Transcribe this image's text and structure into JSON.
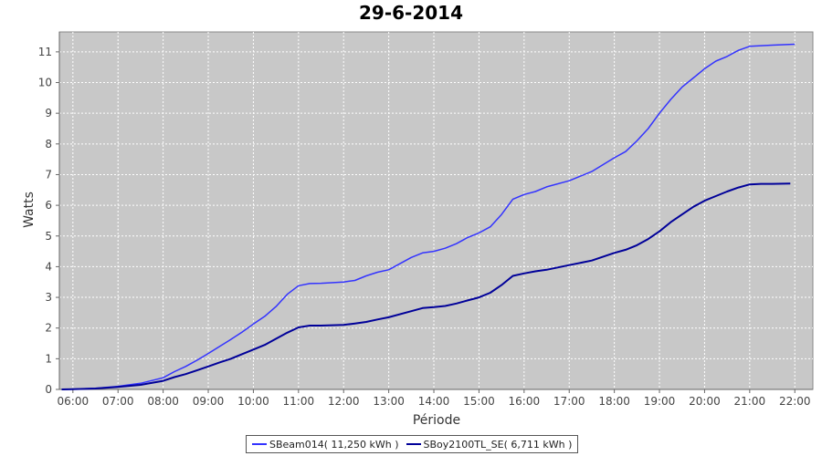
{
  "chart_data": {
    "type": "line",
    "title": "29-6-2014",
    "xlabel": "Période",
    "ylabel": "Watts",
    "x_ticks": [
      "06:00",
      "07:00",
      "08:00",
      "09:00",
      "10:00",
      "11:00",
      "12:00",
      "13:00",
      "14:00",
      "15:00",
      "16:00",
      "17:00",
      "18:00",
      "19:00",
      "20:00",
      "21:00",
      "22:00"
    ],
    "y_ticks": [
      "0",
      "1",
      "2",
      "3",
      "4",
      "5",
      "6",
      "7",
      "8",
      "9",
      "10",
      "11"
    ],
    "xlim": [
      5.7,
      22.4
    ],
    "ylim": [
      0,
      11.65
    ],
    "grid": true,
    "legend_position": "bottom",
    "series": [
      {
        "name": "SBeam014( 11,250 kWh )",
        "color": "#3333ff",
        "x": [
          5.75,
          6.0,
          6.5,
          7.0,
          7.5,
          8.0,
          8.25,
          8.5,
          8.75,
          9.0,
          9.25,
          9.5,
          9.75,
          10.0,
          10.25,
          10.5,
          10.75,
          11.0,
          11.25,
          11.5,
          12.0,
          12.25,
          12.5,
          12.75,
          13.0,
          13.5,
          13.75,
          14.0,
          14.25,
          14.5,
          14.75,
          15.0,
          15.25,
          15.5,
          15.75,
          16.0,
          16.25,
          16.5,
          17.0,
          17.5,
          18.0,
          18.25,
          18.5,
          18.75,
          19.0,
          19.25,
          19.5,
          19.75,
          20.0,
          20.25,
          20.5,
          20.75,
          21.0,
          21.25,
          21.5,
          22.0
        ],
        "y": [
          0,
          0.01,
          0.04,
          0.1,
          0.2,
          0.38,
          0.58,
          0.75,
          0.95,
          1.17,
          1.4,
          1.63,
          1.87,
          2.13,
          2.38,
          2.7,
          3.1,
          3.38,
          3.45,
          3.46,
          3.5,
          3.55,
          3.7,
          3.82,
          3.9,
          4.3,
          4.45,
          4.5,
          4.6,
          4.75,
          4.95,
          5.1,
          5.3,
          5.7,
          6.2,
          6.35,
          6.45,
          6.6,
          6.8,
          7.1,
          7.55,
          7.75,
          8.1,
          8.5,
          9.0,
          9.45,
          9.85,
          10.15,
          10.45,
          10.7,
          10.85,
          11.05,
          11.18,
          11.2,
          11.22,
          11.25
        ]
      },
      {
        "name": "SBoy2100TL_SE( 6,711 kWh )",
        "color": "#000099",
        "x": [
          5.75,
          6.0,
          6.5,
          7.0,
          7.5,
          8.0,
          8.25,
          8.5,
          8.75,
          9.0,
          9.25,
          9.5,
          9.75,
          10.0,
          10.25,
          10.5,
          10.75,
          11.0,
          11.25,
          11.5,
          12.0,
          12.25,
          12.5,
          12.75,
          13.0,
          13.5,
          13.75,
          14.0,
          14.25,
          14.5,
          14.75,
          15.0,
          15.25,
          15.5,
          15.75,
          16.0,
          16.25,
          16.5,
          17.0,
          17.5,
          18.0,
          18.25,
          18.5,
          18.75,
          19.0,
          19.25,
          19.5,
          19.75,
          20.0,
          20.25,
          20.5,
          20.75,
          21.0,
          21.25,
          21.5,
          21.9
        ],
        "y": [
          0,
          0.01,
          0.03,
          0.08,
          0.15,
          0.28,
          0.4,
          0.5,
          0.62,
          0.75,
          0.88,
          1.0,
          1.15,
          1.3,
          1.45,
          1.65,
          1.85,
          2.02,
          2.08,
          2.08,
          2.1,
          2.15,
          2.2,
          2.28,
          2.35,
          2.55,
          2.65,
          2.68,
          2.72,
          2.8,
          2.9,
          3.0,
          3.15,
          3.4,
          3.7,
          3.78,
          3.85,
          3.9,
          4.05,
          4.2,
          4.45,
          4.55,
          4.7,
          4.9,
          5.15,
          5.45,
          5.7,
          5.95,
          6.15,
          6.3,
          6.45,
          6.58,
          6.68,
          6.7,
          6.7,
          6.71
        ]
      }
    ]
  }
}
